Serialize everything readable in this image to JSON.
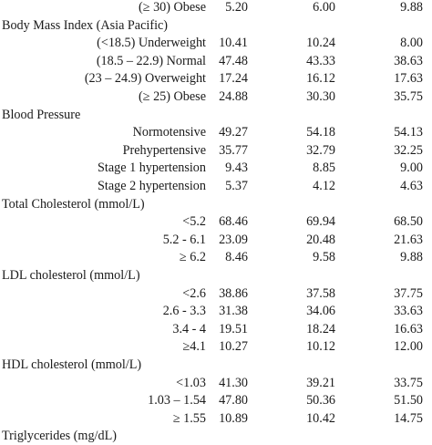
{
  "table": {
    "rows": [
      {
        "type": "data",
        "label": "(≥ 30) Obese",
        "values": [
          "5.20",
          "6.00",
          "9.88"
        ]
      },
      {
        "type": "section",
        "label": "Body Mass Index (Asia Pacific)"
      },
      {
        "type": "data",
        "label": "(<18.5) Underweight",
        "values": [
          "10.41",
          "10.24",
          "8.00"
        ]
      },
      {
        "type": "data",
        "label": "(18.5 – 22.9) Normal",
        "values": [
          "47.48",
          "43.33",
          "38.63"
        ]
      },
      {
        "type": "data",
        "label": "(23 – 24.9) Overweight",
        "values": [
          "17.24",
          "16.12",
          "17.63"
        ]
      },
      {
        "type": "data",
        "label": "(≥ 25) Obese",
        "values": [
          "24.88",
          "30.30",
          "35.75"
        ]
      },
      {
        "type": "section",
        "label": "Blood Pressure"
      },
      {
        "type": "data",
        "label": "Normotensive",
        "values": [
          "49.27",
          "54.18",
          "54.13"
        ]
      },
      {
        "type": "data",
        "label": "Prehypertensive",
        "values": [
          "35.77",
          "32.79",
          "32.25"
        ]
      },
      {
        "type": "data",
        "label": "Stage 1 hypertension",
        "values": [
          "9.43",
          "8.85",
          "9.00"
        ]
      },
      {
        "type": "data",
        "label": "Stage 2 hypertension",
        "values": [
          "5.37",
          "4.12",
          "4.63"
        ]
      },
      {
        "type": "section",
        "label": "Total Cholesterol (mmol/L)"
      },
      {
        "type": "data",
        "label": "<5.2",
        "values": [
          "68.46",
          "69.94",
          "68.50"
        ]
      },
      {
        "type": "data",
        "label": "5.2 - 6.1",
        "values": [
          "23.09",
          "20.48",
          "21.63"
        ]
      },
      {
        "type": "data",
        "label": "≥ 6.2",
        "values": [
          "8.46",
          "9.58",
          "9.88"
        ]
      },
      {
        "type": "section",
        "label": "LDL cholesterol (mmol/L)"
      },
      {
        "type": "data",
        "label": "<2.6",
        "values": [
          "38.86",
          "37.58",
          "37.75"
        ]
      },
      {
        "type": "data",
        "label": "2.6 - 3.3",
        "values": [
          "31.38",
          "34.06",
          "33.63"
        ]
      },
      {
        "type": "data",
        "label": "3.4 - 4",
        "values": [
          "19.51",
          "18.24",
          "16.63"
        ]
      },
      {
        "type": "data",
        "label": "≥4.1",
        "values": [
          "10.27",
          "10.12",
          "12.00"
        ]
      },
      {
        "type": "section",
        "label": "HDL cholesterol (mmol/L)"
      },
      {
        "type": "data",
        "label": "<1.03",
        "values": [
          "41.30",
          "39.21",
          "33.75"
        ]
      },
      {
        "type": "data",
        "label": "1.03 – 1.54",
        "values": [
          "47.80",
          "50.36",
          "51.50"
        ]
      },
      {
        "type": "data",
        "label": "≥ 1.55",
        "values": [
          "10.89",
          "10.42",
          "14.75"
        ]
      },
      {
        "type": "section",
        "label": "Triglycerides (mg/dL)"
      }
    ]
  }
}
